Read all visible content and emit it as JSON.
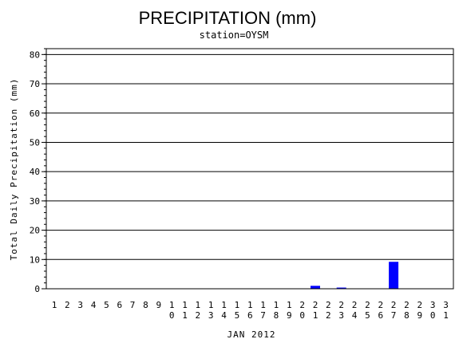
{
  "chart_data": {
    "type": "bar",
    "title": "PRECIPITATION (mm)",
    "subtitle": "station=OYSM",
    "ylabel": "Total Daily Precipitation (mm)",
    "xlabel": "JAN 2012",
    "ylim": [
      0,
      82
    ],
    "yticks": [
      0,
      10,
      20,
      30,
      40,
      50,
      60,
      70,
      80
    ],
    "grid": true,
    "bar_color": "#0000ff",
    "categories": [
      "1",
      "2",
      "3",
      "4",
      "5",
      "6",
      "7",
      "8",
      "9",
      "10",
      "11",
      "12",
      "13",
      "14",
      "15",
      "16",
      "17",
      "18",
      "19",
      "20",
      "21",
      "22",
      "23",
      "24",
      "25",
      "26",
      "27",
      "28",
      "29",
      "30",
      "31"
    ],
    "values": [
      0,
      0,
      0,
      0,
      0,
      0,
      0,
      0,
      0,
      0,
      0,
      0,
      0,
      0,
      0,
      0,
      0,
      0,
      0,
      0,
      1.0,
      0,
      0.4,
      0,
      0,
      0,
      9.2,
      0,
      0,
      0,
      0
    ]
  }
}
